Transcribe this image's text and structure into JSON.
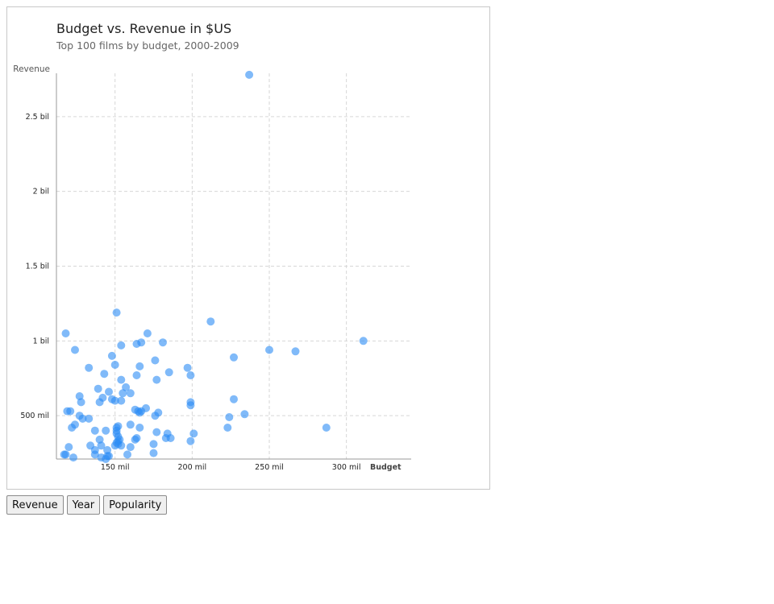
{
  "chart_data": {
    "type": "scatter",
    "title": "Budget vs. Revenue in $US",
    "subtitle": "Top 100 films by budget, 2000-2009",
    "xlabel": "Budget",
    "ylabel": "Revenue",
    "xlim": [
      112000000,
      342000000
    ],
    "ylim": [
      210000000,
      2790000000
    ],
    "x_ticks": [
      150000000,
      200000000,
      250000000,
      300000000
    ],
    "x_tick_labels": [
      "150 mil",
      "200 mil",
      "250 mil",
      "300 mil"
    ],
    "y_ticks": [
      500000000,
      1000000000,
      1500000000,
      2000000000,
      2500000000
    ],
    "y_tick_labels": [
      "500 mil",
      "1 bil",
      "1.5 bil",
      "2 bil",
      "2.5 bil"
    ],
    "grid": true,
    "legend": "none",
    "color": "#2b8cf5",
    "series": [
      {
        "x": [
          237000000,
          151000000,
          212000000,
          311000000,
          118000000,
          171000000,
          154000000,
          167000000,
          164000000,
          181000000,
          250000000,
          267000000,
          124000000,
          227000000,
          148000000,
          176000000,
          150000000,
          166000000,
          133000000,
          197000000,
          143000000,
          185000000,
          164000000,
          199000000,
          154000000,
          177000000,
          157000000,
          139000000,
          146000000,
          160000000,
          155000000,
          127000000,
          142000000,
          148000000,
          150000000,
          154000000,
          140000000,
          128000000,
          199000000,
          227000000,
          199000000,
          163000000,
          165000000,
          166000000,
          170000000,
          178000000,
          167000000,
          176000000,
          234000000,
          119000000,
          127000000,
          224000000,
          129000000,
          133000000,
          121000000,
          160000000,
          152000000,
          122000000,
          151000000,
          166000000,
          223000000,
          287000000,
          151000000,
          124000000,
          137000000,
          144000000,
          151000000,
          201000000,
          184000000,
          177000000,
          152000000,
          186000000,
          183000000,
          164000000,
          140000000,
          152000000,
          199000000,
          153000000,
          152000000,
          134000000,
          175000000,
          141000000,
          154000000,
          160000000,
          120000000,
          137000000,
          145000000,
          150000000,
          175000000,
          118000000,
          145000000,
          137000000,
          158000000,
          141000000,
          146000000,
          117000000,
          123000000,
          144000000,
          151000000,
          163000000
        ],
        "y": [
          2780000000,
          1190000000,
          1130000000,
          1000000000,
          1050000000,
          1050000000,
          970000000,
          990000000,
          980000000,
          990000000,
          940000000,
          930000000,
          940000000,
          890000000,
          900000000,
          870000000,
          840000000,
          830000000,
          820000000,
          820000000,
          780000000,
          790000000,
          770000000,
          770000000,
          740000000,
          740000000,
          690000000,
          680000000,
          660000000,
          650000000,
          650000000,
          630000000,
          620000000,
          610000000,
          600000000,
          600000000,
          590000000,
          590000000,
          590000000,
          610000000,
          570000000,
          540000000,
          530000000,
          520000000,
          550000000,
          520000000,
          530000000,
          500000000,
          510000000,
          530000000,
          500000000,
          490000000,
          480000000,
          480000000,
          530000000,
          440000000,
          430000000,
          420000000,
          420000000,
          420000000,
          420000000,
          420000000,
          400000000,
          440000000,
          400000000,
          400000000,
          380000000,
          380000000,
          380000000,
          390000000,
          360000000,
          350000000,
          350000000,
          350000000,
          340000000,
          330000000,
          330000000,
          340000000,
          310000000,
          300000000,
          310000000,
          300000000,
          300000000,
          290000000,
          290000000,
          270000000,
          270000000,
          300000000,
          250000000,
          240000000,
          230000000,
          240000000,
          240000000,
          220000000,
          230000000,
          240000000,
          220000000,
          210000000,
          320000000,
          340000000
        ]
      }
    ]
  },
  "controls": {
    "revenue_label": "Revenue",
    "year_label": "Year",
    "popularity_label": "Popularity"
  }
}
